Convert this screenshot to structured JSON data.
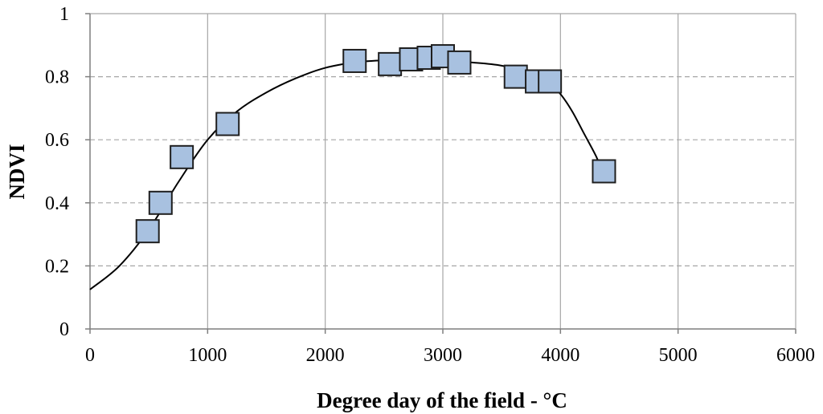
{
  "chart_data": {
    "type": "scatter",
    "title": "",
    "xlabel": "Degree day of the field - °C",
    "ylabel": "NDVI",
    "xlim": [
      0,
      6000
    ],
    "ylim": [
      0,
      1
    ],
    "x_ticks": [
      0,
      1000,
      2000,
      3000,
      4000,
      5000,
      6000
    ],
    "y_ticks": [
      0,
      0.2,
      0.4,
      0.6,
      0.8,
      1
    ],
    "x_tick_labels": [
      "0",
      "1000",
      "2000",
      "3000",
      "4000",
      "5000",
      "6000"
    ],
    "y_tick_labels": [
      "0",
      "0.2",
      "0.4",
      "0.6",
      "0.8",
      "1"
    ],
    "grid": {
      "vertical": "solid",
      "horizontal": "dashed"
    },
    "legend": "none",
    "colors": {
      "marker_fill": "#a8c1e0",
      "marker_stroke": "#1f1f1f",
      "curve": "#000000",
      "grid": "#a6a6a6"
    },
    "series": [
      {
        "type": "scatter",
        "marker": "square",
        "x": [
          490,
          600,
          780,
          1170,
          2250,
          2550,
          2730,
          2880,
          3000,
          3140,
          3620,
          3800,
          3910,
          4370
        ],
        "y": [
          0.31,
          0.4,
          0.545,
          0.65,
          0.85,
          0.84,
          0.855,
          0.86,
          0.865,
          0.845,
          0.8,
          0.785,
          0.785,
          0.5
        ]
      },
      {
        "type": "line",
        "style": "fit-curve",
        "x": [
          0,
          250,
          500,
          750,
          1000,
          1250,
          1500,
          1750,
          2000,
          2250,
          2500,
          2750,
          3000,
          3250,
          3500,
          3750,
          3900,
          4000,
          4100,
          4200,
          4300,
          4350
        ],
        "y": [
          0.125,
          0.2,
          0.315,
          0.465,
          0.6,
          0.69,
          0.75,
          0.795,
          0.828,
          0.845,
          0.852,
          0.853,
          0.85,
          0.845,
          0.835,
          0.81,
          0.78,
          0.745,
          0.69,
          0.62,
          0.55,
          0.505
        ]
      }
    ]
  }
}
